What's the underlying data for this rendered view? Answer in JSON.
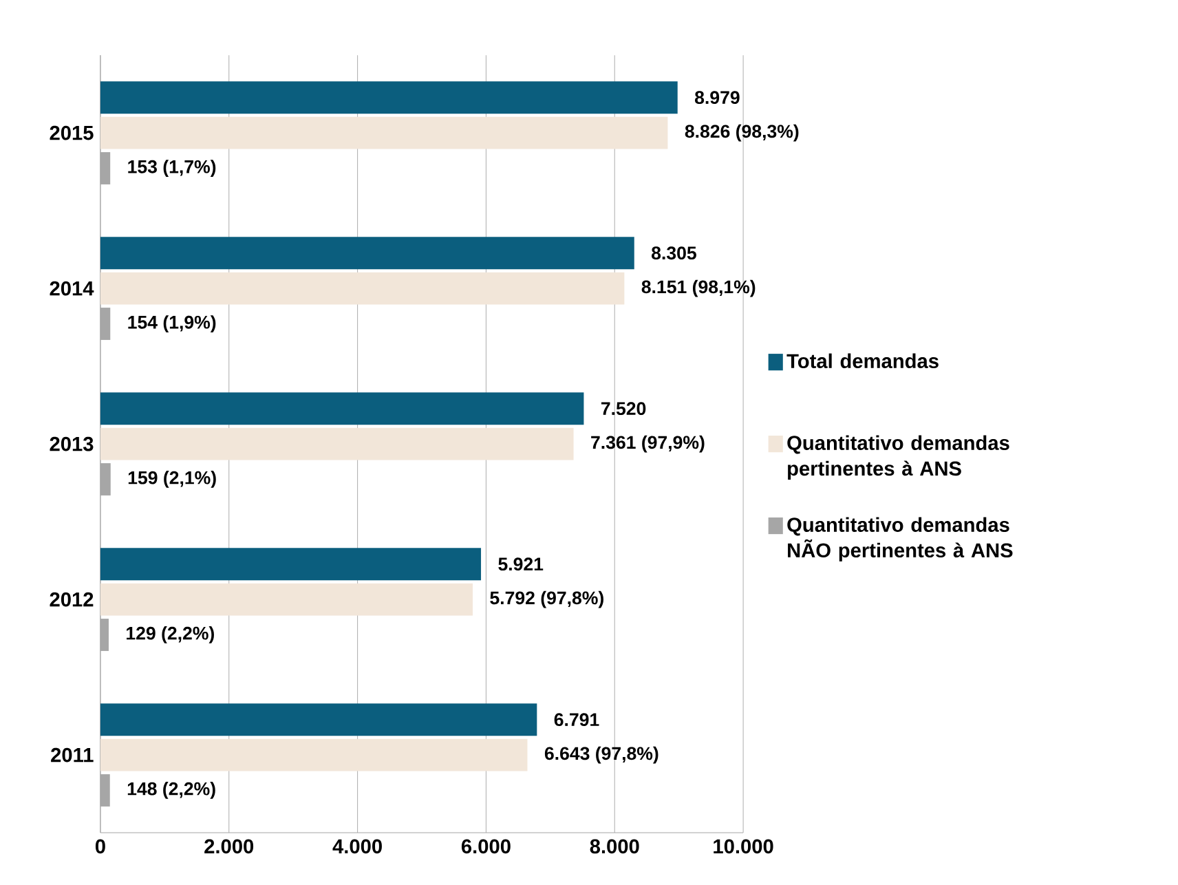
{
  "chart_data": {
    "type": "bar",
    "orientation": "horizontal",
    "categories": [
      "2015",
      "2014",
      "2013",
      "2012",
      "2011"
    ],
    "series": [
      {
        "name": "Total demandas",
        "color": "#0b5e7e",
        "values": [
          8979,
          8305,
          7520,
          5921,
          6791
        ],
        "value_labels": [
          "8.979",
          "8.305",
          "7.520",
          "5.921",
          "6.791"
        ]
      },
      {
        "name": "Quantitativo demandas pertinentes à ANS",
        "color": "#f2e6d9",
        "values": [
          8826,
          8151,
          7361,
          5792,
          6643
        ],
        "value_labels": [
          "8.826 (98,3%)",
          "8.151 (98,1%)",
          "7.361 (97,9%)",
          "5.792 (97,8%)",
          "6.643 (97,8%)"
        ]
      },
      {
        "name": "Quantitativo demandas NÃO pertinentes à ANS",
        "color": "#a6a6a6",
        "values": [
          153,
          154,
          159,
          129,
          148
        ],
        "value_labels": [
          "153 (1,7%)",
          "154 (1,9%)",
          "159 (2,1%)",
          "129 (2,2%)",
          "148 (2,2%)"
        ]
      }
    ],
    "xlim": [
      0,
      10000
    ],
    "xticks": [
      0,
      {
        "value": 2000,
        "label": "2.000"
      },
      {
        "value": 4000,
        "label": "4.000"
      },
      {
        "value": 6000,
        "label": "6.000"
      },
      {
        "value": 8000,
        "label": "8.000"
      },
      {
        "value": 10000,
        "label": "10.000"
      }
    ],
    "grid": "x",
    "legend": "right"
  }
}
